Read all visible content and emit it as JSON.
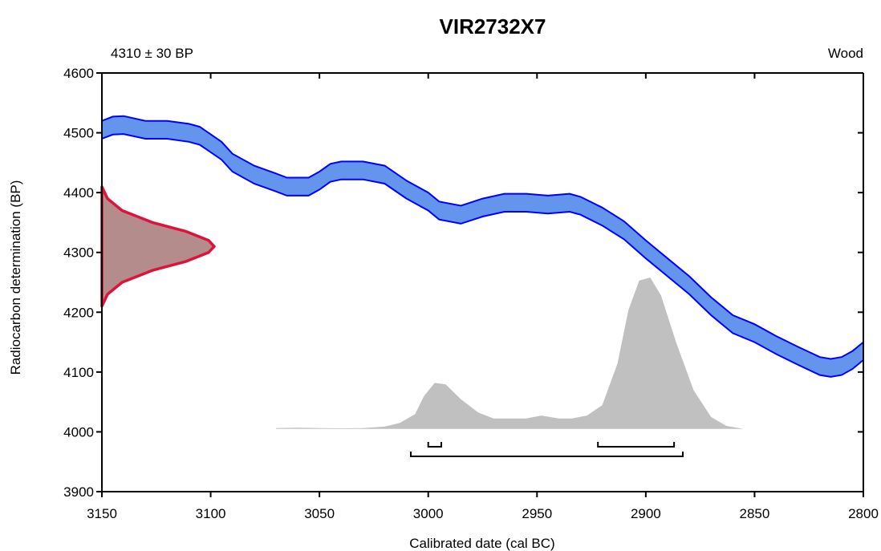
{
  "chart_data": {
    "type": "area",
    "title": "VIR2732X7",
    "sample_date": "4310 ± 30 BP",
    "material": "Wood",
    "xlabel": "Calibrated date (cal BC)",
    "ylabel": "Radiocarbon determination (BP)",
    "xlim": [
      3150,
      2800
    ],
    "ylim": [
      3900,
      4600
    ],
    "x_ticks": [
      "3150",
      "3100",
      "3050",
      "3000",
      "2950",
      "2900",
      "2850",
      "2800"
    ],
    "y_ticks": [
      "3900",
      "4000",
      "4100",
      "4200",
      "4300",
      "4400",
      "4500",
      "4600"
    ],
    "colors": {
      "curve_fill": "#6495ED",
      "curve_line": "#0000FF",
      "measurement_fill": "#B48C8C",
      "measurement_line": "#DC143C",
      "posterior_fill": "#C0C0C0",
      "axis": "#000000"
    },
    "calibration_curve": {
      "x": [
        3150,
        3145,
        3140,
        3130,
        3120,
        3110,
        3105,
        3095,
        3090,
        3080,
        3070,
        3065,
        3055,
        3050,
        3045,
        3040,
        3030,
        3020,
        3010,
        3000,
        2995,
        2985,
        2975,
        2965,
        2955,
        2945,
        2935,
        2930,
        2920,
        2910,
        2900,
        2890,
        2880,
        2870,
        2860,
        2850,
        2840,
        2830,
        2820,
        2815,
        2810,
        2805,
        2800
      ],
      "upper": [
        4520,
        4527,
        4528,
        4520,
        4520,
        4515,
        4510,
        4485,
        4465,
        4445,
        4432,
        4425,
        4425,
        4435,
        4448,
        4452,
        4452,
        4445,
        4420,
        4400,
        4385,
        4378,
        4390,
        4398,
        4398,
        4395,
        4398,
        4393,
        4375,
        4352,
        4320,
        4290,
        4260,
        4225,
        4195,
        4180,
        4160,
        4142,
        4125,
        4122,
        4125,
        4135,
        4150
      ],
      "lower": [
        4490,
        4497,
        4498,
        4490,
        4490,
        4485,
        4480,
        4455,
        4435,
        4415,
        4402,
        4395,
        4395,
        4405,
        4418,
        4422,
        4422,
        4415,
        4390,
        4370,
        4355,
        4348,
        4360,
        4368,
        4368,
        4365,
        4368,
        4363,
        4345,
        4322,
        4290,
        4260,
        4230,
        4195,
        4165,
        4150,
        4130,
        4112,
        4095,
        4092,
        4095,
        4105,
        4120
      ]
    },
    "measurement_distribution": {
      "bp": [
        4210,
        4230,
        4250,
        4270,
        4285,
        4300,
        4310,
        4320,
        4335,
        4350,
        4370,
        4390,
        4410
      ],
      "width": [
        0,
        0.05,
        0.18,
        0.45,
        0.75,
        0.95,
        1.0,
        0.95,
        0.75,
        0.45,
        0.18,
        0.05,
        0
      ]
    },
    "posterior_distribution": {
      "x": [
        3070,
        3060,
        3050,
        3040,
        3030,
        3020,
        3013,
        3006,
        3002,
        2997,
        2992,
        2985,
        2977,
        2970,
        2962,
        2955,
        2948,
        2940,
        2934,
        2927,
        2920,
        2913,
        2908,
        2903,
        2898,
        2893,
        2886,
        2878,
        2870,
        2863,
        2855
      ],
      "density": [
        0.005,
        0.008,
        0.005,
        0.004,
        0.005,
        0.015,
        0.04,
        0.1,
        0.22,
        0.31,
        0.3,
        0.2,
        0.11,
        0.07,
        0.07,
        0.07,
        0.09,
        0.07,
        0.07,
        0.09,
        0.16,
        0.44,
        0.8,
        1.0,
        1.02,
        0.9,
        0.58,
        0.26,
        0.08,
        0.02,
        0.0
      ]
    },
    "ranges_68": [
      [
        3000,
        2994
      ],
      [
        2922,
        2887
      ]
    ],
    "ranges_95": [
      [
        3008,
        2883
      ]
    ]
  }
}
